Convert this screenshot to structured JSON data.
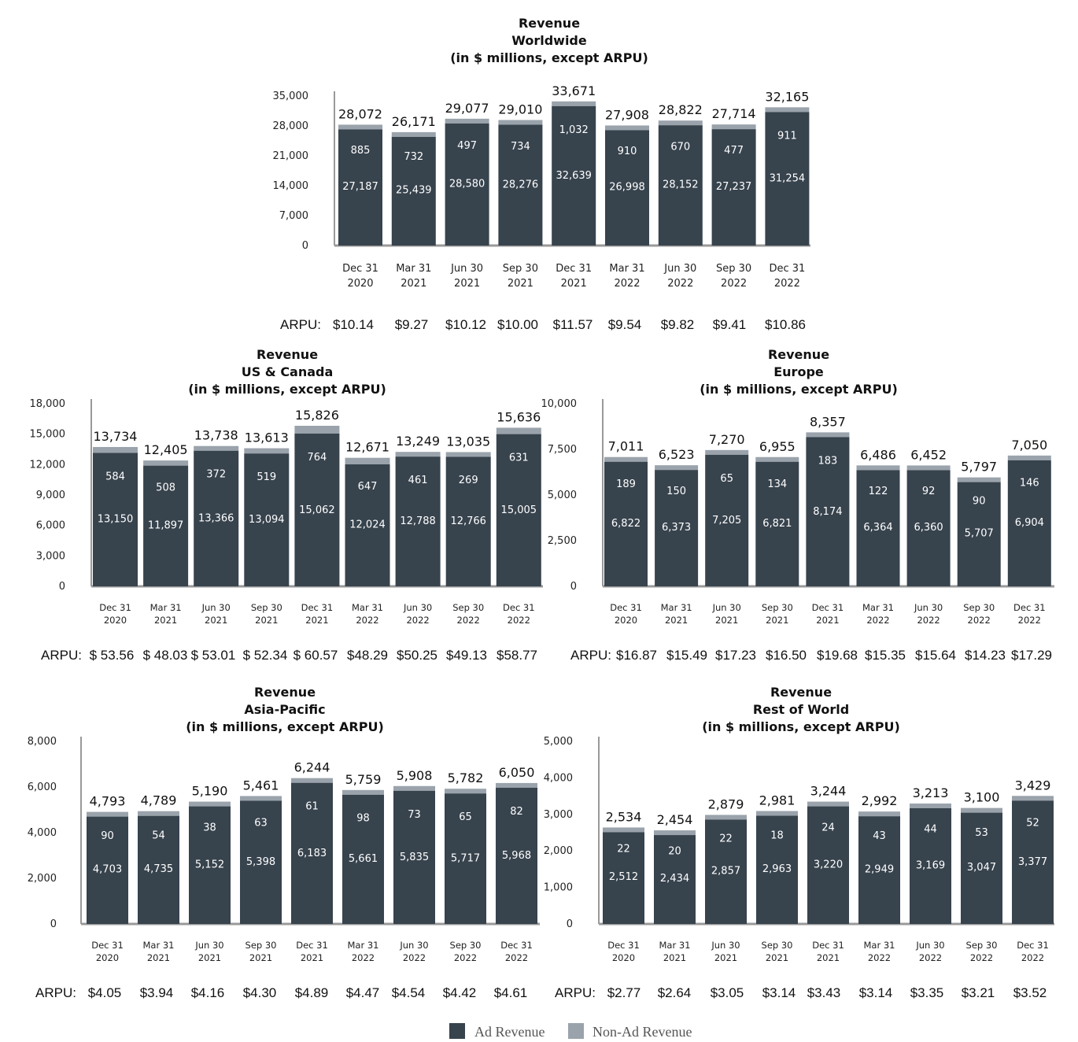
{
  "legend": {
    "ad_label": "Ad Revenue",
    "non_ad_label": "Non-Ad Revenue",
    "ad_color": "#37434d",
    "non_ad_color": "#9aa3ab"
  },
  "chart_data": [
    {
      "type": "bar",
      "stacked": true,
      "title": [
        "Revenue",
        "Worldwide",
        "(in $ millions, except ARPU)"
      ],
      "categories": [
        [
          "Dec 31",
          "2020"
        ],
        [
          "Mar 31",
          "2021"
        ],
        [
          "Jun 30",
          "2021"
        ],
        [
          "Sep 30",
          "2021"
        ],
        [
          "Dec 31",
          "2021"
        ],
        [
          "Mar 31",
          "2022"
        ],
        [
          "Jun 30",
          "2022"
        ],
        [
          "Sep 30",
          "2022"
        ],
        [
          "Dec 31",
          "2022"
        ]
      ],
      "yticks": [
        "0",
        "7,000",
        "14,000",
        "21,000",
        "28,000",
        "35,000"
      ],
      "ylim": [
        0,
        35000
      ],
      "series": [
        {
          "name": "Ad Revenue",
          "values": [
            27187,
            25439,
            28580,
            28276,
            32639,
            26998,
            28152,
            27237,
            31254
          ],
          "labels": [
            "27,187",
            "25,439",
            "28,580",
            "28,276",
            "32,639",
            "26,998",
            "28,152",
            "27,237",
            "31,254"
          ]
        },
        {
          "name": "Non-Ad Revenue",
          "values": [
            885,
            732,
            497,
            734,
            1032,
            910,
            670,
            477,
            911
          ],
          "labels": [
            "885",
            "732",
            "497",
            "734",
            "1,032",
            "910",
            "670",
            "477",
            "911"
          ]
        }
      ],
      "totals": [
        "28,072",
        "26,171",
        "29,077",
        "29,010",
        "33,671",
        "27,908",
        "28,822",
        "27,714",
        "32,165"
      ],
      "arpu_label": "ARPU:",
      "arpu": [
        "$10.14",
        "$9.27",
        "$10.12",
        "$10.00",
        "$11.57",
        "$9.54",
        "$9.82",
        "$9.41",
        "$10.86"
      ]
    },
    {
      "type": "bar",
      "stacked": true,
      "title": [
        "Revenue",
        "US & Canada",
        "(in $ millions, except ARPU)"
      ],
      "categories": [
        [
          "Dec 31",
          "2020"
        ],
        [
          "Mar 31",
          "2021"
        ],
        [
          "Jun 30",
          "2021"
        ],
        [
          "Sep 30",
          "2021"
        ],
        [
          "Dec 31",
          "2021"
        ],
        [
          "Mar 31",
          "2022"
        ],
        [
          "Jun 30",
          "2022"
        ],
        [
          "Sep 30",
          "2022"
        ],
        [
          "Dec 31",
          "2022"
        ]
      ],
      "yticks": [
        "0",
        "3,000",
        "6,000",
        "9,000",
        "12,000",
        "15,000",
        "18,000"
      ],
      "ylim": [
        0,
        18000
      ],
      "series": [
        {
          "name": "Ad Revenue",
          "values": [
            13150,
            11897,
            13366,
            13094,
            15062,
            12024,
            12788,
            12766,
            15005
          ],
          "labels": [
            "13,150",
            "11,897",
            "13,366",
            "13,094",
            "15,062",
            "12,024",
            "12,788",
            "12,766",
            "15,005"
          ]
        },
        {
          "name": "Non-Ad Revenue",
          "values": [
            584,
            508,
            372,
            519,
            764,
            647,
            461,
            269,
            631
          ],
          "labels": [
            "584",
            "508",
            "372",
            "519",
            "764",
            "647",
            "461",
            "269",
            "631"
          ]
        }
      ],
      "totals": [
        "13,734",
        "12,405",
        "13,738",
        "13,613",
        "15,826",
        "12,671",
        "13,249",
        "13,035",
        "15,636"
      ],
      "arpu_label": "ARPU:",
      "arpu": [
        "$ 53.56",
        "$ 48.03",
        "$ 53.01",
        "$ 52.34",
        "$ 60.57",
        "$48.29",
        "$50.25",
        "$49.13",
        "$58.77"
      ]
    },
    {
      "type": "bar",
      "stacked": true,
      "title": [
        "Revenue",
        "Europe",
        "(in $ millions, except ARPU)"
      ],
      "categories": [
        [
          "Dec 31",
          "2020"
        ],
        [
          "Mar 31",
          "2021"
        ],
        [
          "Jun 30",
          "2021"
        ],
        [
          "Sep 30",
          "2021"
        ],
        [
          "Dec 31",
          "2021"
        ],
        [
          "Mar 31",
          "2022"
        ],
        [
          "Jun 30",
          "2022"
        ],
        [
          "Sep 30",
          "2022"
        ],
        [
          "Dec 31",
          "2022"
        ]
      ],
      "yticks": [
        "0",
        "2,500",
        "5,000",
        "7,500",
        "10,000"
      ],
      "ylim": [
        0,
        10000
      ],
      "series": [
        {
          "name": "Ad Revenue",
          "values": [
            6822,
            6373,
            7205,
            6821,
            8174,
            6364,
            6360,
            5707,
            6904
          ],
          "labels": [
            "6,822",
            "6,373",
            "7,205",
            "6,821",
            "8,174",
            "6,364",
            "6,360",
            "5,707",
            "6,904"
          ]
        },
        {
          "name": "Non-Ad Revenue",
          "values": [
            189,
            150,
            65,
            134,
            183,
            122,
            92,
            90,
            146
          ],
          "labels": [
            "189",
            "150",
            "65",
            "134",
            "183",
            "122",
            "92",
            "90",
            "146"
          ]
        }
      ],
      "totals": [
        "7,011",
        "6,523",
        "7,270",
        "6,955",
        "8,357",
        "6,486",
        "6,452",
        "5,797",
        "7,050"
      ],
      "arpu_label": "ARPU:",
      "arpu": [
        "$16.87",
        "$15.49",
        "$17.23",
        "$16.50",
        "$19.68",
        "$15.35",
        "$15.64",
        "$14.23",
        "$17.29"
      ]
    },
    {
      "type": "bar",
      "stacked": true,
      "title": [
        "Revenue",
        "Asia-Pacific",
        "(in $ millions, except ARPU)"
      ],
      "categories": [
        [
          "Dec 31",
          "2020"
        ],
        [
          "Mar 31",
          "2021"
        ],
        [
          "Jun 30",
          "2021"
        ],
        [
          "Sep 30",
          "2021"
        ],
        [
          "Dec 31",
          "2021"
        ],
        [
          "Mar 31",
          "2022"
        ],
        [
          "Jun 30",
          "2022"
        ],
        [
          "Sep 30",
          "2022"
        ],
        [
          "Dec 31",
          "2022"
        ]
      ],
      "yticks": [
        "0",
        "2,000",
        "4,000",
        "6,000",
        "8,000"
      ],
      "ylim": [
        0,
        8000
      ],
      "series": [
        {
          "name": "Ad Revenue",
          "values": [
            4703,
            4735,
            5152,
            5398,
            6183,
            5661,
            5835,
            5717,
            5968
          ],
          "labels": [
            "4,703",
            "4,735",
            "5,152",
            "5,398",
            "6,183",
            "5,661",
            "5,835",
            "5,717",
            "5,968"
          ]
        },
        {
          "name": "Non-Ad Revenue",
          "values": [
            90,
            54,
            38,
            63,
            61,
            98,
            73,
            65,
            82
          ],
          "labels": [
            "90",
            "54",
            "38",
            "63",
            "61",
            "98",
            "73",
            "65",
            "82"
          ]
        }
      ],
      "totals": [
        "4,793",
        "4,789",
        "5,190",
        "5,461",
        "6,244",
        "5,759",
        "5,908",
        "5,782",
        "6,050"
      ],
      "arpu_label": "ARPU:",
      "arpu": [
        "$4.05",
        "$3.94",
        "$4.16",
        "$4.30",
        "$4.89",
        "$4.47",
        "$4.54",
        "$4.42",
        "$4.61"
      ]
    },
    {
      "type": "bar",
      "stacked": true,
      "title": [
        "Revenue",
        "Rest of World",
        "(in $ millions, except ARPU)"
      ],
      "categories": [
        [
          "Dec 31",
          "2020"
        ],
        [
          "Mar 31",
          "2021"
        ],
        [
          "Jun 30",
          "2021"
        ],
        [
          "Sep 30",
          "2021"
        ],
        [
          "Dec 31",
          "2021"
        ],
        [
          "Mar 31",
          "2022"
        ],
        [
          "Jun 30",
          "2022"
        ],
        [
          "Sep 30",
          "2022"
        ],
        [
          "Dec 31",
          "2022"
        ]
      ],
      "yticks": [
        "0",
        "1,000",
        "2,000",
        "3,000",
        "4,000",
        "5,000"
      ],
      "ylim": [
        0,
        5000
      ],
      "series": [
        {
          "name": "Ad Revenue",
          "values": [
            2512,
            2434,
            2857,
            2963,
            3220,
            2949,
            3169,
            3047,
            3377
          ],
          "labels": [
            "2,512",
            "2,434",
            "2,857",
            "2,963",
            "3,220",
            "2,949",
            "3,169",
            "3,047",
            "3,377"
          ]
        },
        {
          "name": "Non-Ad Revenue",
          "values": [
            22,
            20,
            22,
            18,
            24,
            43,
            44,
            53,
            52
          ],
          "labels": [
            "22",
            "20",
            "22",
            "18",
            "24",
            "43",
            "44",
            "53",
            "52"
          ]
        }
      ],
      "totals": [
        "2,534",
        "2,454",
        "2,879",
        "2,981",
        "3,244",
        "2,992",
        "3,213",
        "3,100",
        "3,429"
      ],
      "arpu_label": "ARPU:",
      "arpu": [
        "$2.77",
        "$2.64",
        "$3.05",
        "$3.14",
        "$3.43",
        "$3.14",
        "$3.35",
        "$3.21",
        "$3.52"
      ]
    }
  ]
}
